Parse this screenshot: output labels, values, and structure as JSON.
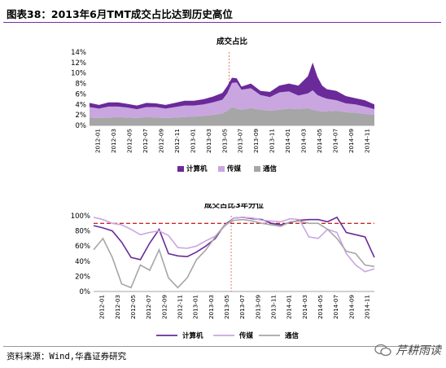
{
  "figure": {
    "title": "图表38：2013年6月TMT成交占比达到历史高位",
    "source": "资料来源：Wind,华鑫证券研究",
    "watermark": "芹耕雨读",
    "watermark_icon": "wechat-icon"
  },
  "colors": {
    "computer": "#6a2a9a",
    "media": "#c9a6e0",
    "telecom": "#a6a6a6",
    "threshold": "#c00000",
    "divider": "#e07050",
    "rule": "#7a2fa0"
  },
  "chart_data": [
    {
      "type": "area",
      "stacked": true,
      "title": "成交占比",
      "ylim": [
        0,
        14
      ],
      "yticks": [
        "0%",
        "2%",
        "4%",
        "6%",
        "8%",
        "10%",
        "12%",
        "14%"
      ],
      "x_tick_labels": [
        "2012-01",
        "2012-03",
        "2012-05",
        "2012-07",
        "2012-09",
        "2012-11",
        "2013-01",
        "2013-03",
        "2013-05",
        "2013-07",
        "2013-09",
        "2013-11",
        "2014-01",
        "2014-03",
        "2014-05",
        "2014-07",
        "2014-09",
        "2014-11"
      ],
      "xlim": [
        2012.0,
        2015.0
      ],
      "vertical_marker_x": 2013.47,
      "legend": [
        "计算机",
        "传媒",
        "通信"
      ],
      "legend_placement": "bottom",
      "x": [
        2012.0,
        2012.1,
        2012.2,
        2012.3,
        2012.4,
        2012.5,
        2012.6,
        2012.7,
        2012.8,
        2012.9,
        2013.0,
        2013.1,
        2013.2,
        2013.3,
        2013.4,
        2013.45,
        2013.5,
        2013.55,
        2013.6,
        2013.7,
        2013.8,
        2013.9,
        2014.0,
        2014.1,
        2014.2,
        2014.3,
        2014.35,
        2014.4,
        2014.45,
        2014.5,
        2014.6,
        2014.7,
        2014.8,
        2014.9,
        2015.0
      ],
      "series": [
        {
          "name": "通信",
          "values": [
            1.5,
            1.4,
            1.5,
            1.6,
            1.5,
            1.4,
            1.6,
            1.5,
            1.4,
            1.5,
            1.6,
            1.7,
            1.8,
            2.0,
            2.3,
            2.8,
            3.5,
            3.2,
            3.0,
            3.3,
            3.0,
            2.8,
            3.0,
            3.2,
            3.1,
            3.3,
            3.0,
            2.8,
            2.6,
            2.7,
            2.8,
            2.5,
            2.4,
            2.2,
            2.0
          ]
        },
        {
          "name": "传媒",
          "values": [
            2.0,
            1.8,
            2.1,
            2.0,
            1.9,
            1.7,
            1.9,
            2.0,
            1.8,
            2.0,
            2.2,
            2.1,
            2.2,
            2.4,
            2.6,
            3.3,
            4.6,
            5.0,
            3.8,
            3.8,
            2.8,
            2.6,
            3.3,
            3.3,
            2.6,
            2.8,
            3.7,
            3.0,
            2.8,
            2.4,
            2.0,
            1.7,
            1.6,
            1.4,
            1.1
          ]
        },
        {
          "name": "计算机",
          "values": [
            0.8,
            0.7,
            0.8,
            0.8,
            0.7,
            0.7,
            0.8,
            0.7,
            0.7,
            0.8,
            0.9,
            0.9,
            1.0,
            1.1,
            1.3,
            1.4,
            1.0,
            0.8,
            0.6,
            0.9,
            0.8,
            1.0,
            1.3,
            1.5,
            1.9,
            3.3,
            5.3,
            3.5,
            2.2,
            1.8,
            1.8,
            1.4,
            1.2,
            1.2,
            0.9
          ]
        }
      ]
    },
    {
      "type": "line",
      "title": "成交占比3年分位",
      "ylim": [
        0,
        100
      ],
      "yticks": [
        "0%",
        "20%",
        "40%",
        "60%",
        "80%",
        "100%"
      ],
      "x_tick_labels": [
        "2012-01",
        "2012-03",
        "2012-05",
        "2012-07",
        "2012-09",
        "2012-11",
        "2013-01",
        "2013-03",
        "2013-05",
        "2013-07",
        "2013-09",
        "2013-11",
        "2014-01",
        "2014-03",
        "2014-05",
        "2014-07",
        "2014-09",
        "2014-11"
      ],
      "xlim": [
        2012.0,
        2015.0
      ],
      "reference_line_y": 90,
      "vertical_marker_x": 2013.47,
      "legend": [
        "计算机",
        "传媒",
        "通信"
      ],
      "legend_placement": "bottom",
      "x": [
        2012.0,
        2012.1,
        2012.2,
        2012.3,
        2012.4,
        2012.5,
        2012.6,
        2012.7,
        2012.8,
        2012.9,
        2013.0,
        2013.1,
        2013.2,
        2013.3,
        2013.4,
        2013.5,
        2013.6,
        2013.7,
        2013.8,
        2013.9,
        2014.0,
        2014.1,
        2014.2,
        2014.3,
        2014.4,
        2014.5,
        2014.6,
        2014.7,
        2014.8,
        2014.9,
        2015.0
      ],
      "series": [
        {
          "name": "计算机",
          "values": [
            87,
            84,
            80,
            65,
            45,
            42,
            64,
            82,
            50,
            47,
            46,
            52,
            60,
            70,
            88,
            97,
            98,
            96,
            95,
            90,
            88,
            91,
            94,
            95,
            95,
            92,
            98,
            78,
            75,
            72,
            45
          ]
        },
        {
          "name": "传媒",
          "values": [
            98,
            95,
            90,
            88,
            82,
            75,
            78,
            80,
            74,
            58,
            57,
            60,
            67,
            73,
            86,
            97,
            98,
            97,
            94,
            93,
            92,
            96,
            95,
            72,
            70,
            82,
            78,
            50,
            35,
            26,
            30
          ]
        },
        {
          "name": "通信",
          "values": [
            55,
            70,
            45,
            10,
            5,
            35,
            28,
            55,
            18,
            5,
            18,
            42,
            55,
            72,
            88,
            94,
            95,
            93,
            90,
            88,
            86,
            92,
            93,
            90,
            90,
            82,
            70,
            53,
            50,
            35,
            33
          ]
        }
      ]
    }
  ]
}
